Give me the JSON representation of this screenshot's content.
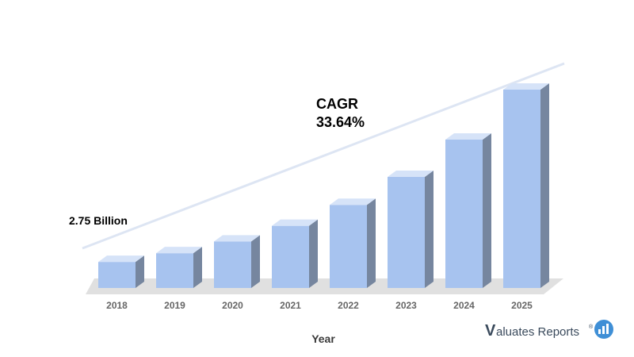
{
  "chart_data": {
    "type": "bar",
    "categories": [
      "2018",
      "2019",
      "2020",
      "2021",
      "2022",
      "2023",
      "2024",
      "2025"
    ],
    "values": [
      2.75,
      3.67,
      4.91,
      6.56,
      8.77,
      11.72,
      15.66,
      20.93
    ],
    "xlabel": "Year",
    "annotations": {
      "start_label": "2.75 Billion",
      "cagr_title": "CAGR",
      "cagr_value": "33.64%"
    },
    "grid": false,
    "legend": "none",
    "style": "3d-bars-with-trend-line"
  },
  "brand": {
    "logo_initial": "V",
    "logo_text": "aluates Reports",
    "logo_mark": "®",
    "logo_icon": "chart-bubble-icon"
  },
  "colors": {
    "bar_front": "#a7c3ef",
    "bar_top": "#d6e3f8",
    "bar_side": "#76869f",
    "floor": "#e0e0e0",
    "trend_line": "#dde5f3",
    "logo_icon": "#3f8fd6"
  }
}
